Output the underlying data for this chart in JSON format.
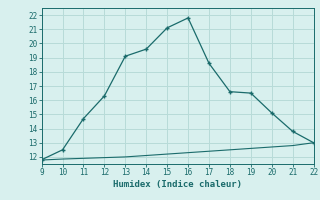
{
  "xlabel": "Humidex (Indice chaleur)",
  "x_main": [
    9,
    10,
    11,
    12,
    13,
    14,
    15,
    16,
    17,
    18,
    19,
    20,
    21,
    22
  ],
  "y_main": [
    11.8,
    12.5,
    14.7,
    16.3,
    19.1,
    19.6,
    21.1,
    21.8,
    18.6,
    16.6,
    16.5,
    15.1,
    13.8,
    13.0
  ],
  "x_base": [
    9,
    10,
    11,
    12,
    13,
    14,
    15,
    16,
    17,
    18,
    19,
    20,
    21,
    22
  ],
  "y_base": [
    11.78,
    11.85,
    11.9,
    11.95,
    12.0,
    12.1,
    12.2,
    12.3,
    12.4,
    12.5,
    12.6,
    12.7,
    12.8,
    13.0
  ],
  "line_color": "#1a6b6b",
  "bg_color": "#d8f0ee",
  "grid_color": "#b8dbd8",
  "xlim": [
    9,
    22
  ],
  "ylim": [
    11.5,
    22.5
  ],
  "xticks": [
    9,
    10,
    11,
    12,
    13,
    14,
    15,
    16,
    17,
    18,
    19,
    20,
    21,
    22
  ],
  "yticks": [
    12,
    13,
    14,
    15,
    16,
    17,
    18,
    19,
    20,
    21,
    22
  ]
}
